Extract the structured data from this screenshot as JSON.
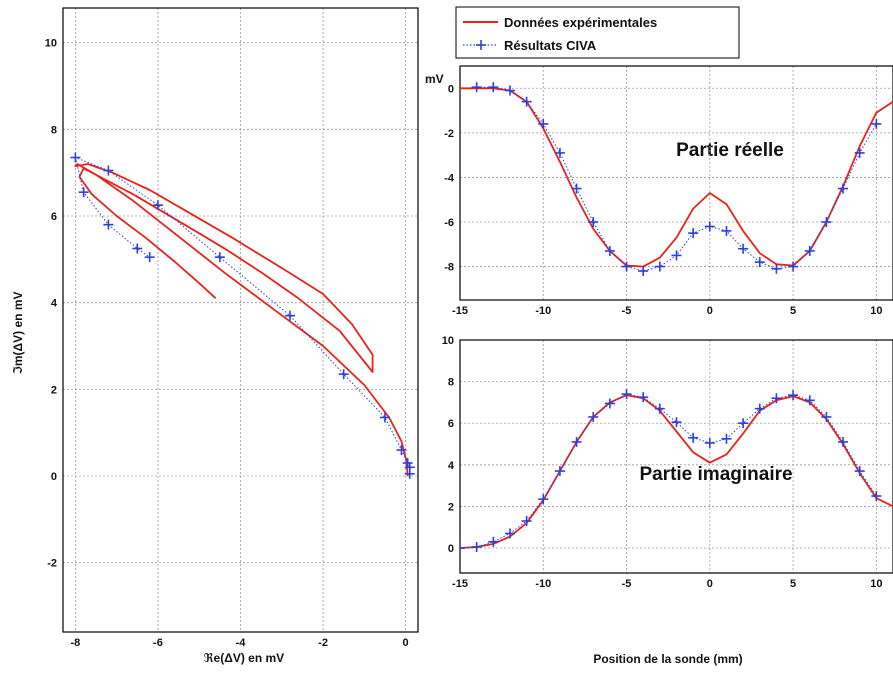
{
  "colors": {
    "experimental": "#e8231b",
    "civa": "#2b3fe0"
  },
  "legend": {
    "experimental_label": "Données expérimentales",
    "civa_label": "Résultats CIVA"
  },
  "x_shared_label": "Position de la sonde (mm)",
  "chart_data": [
    {
      "id": "lissajous",
      "type": "line",
      "xlabel": "ℜe(ΔV) en mV",
      "ylabel": "ℑm(ΔV) en mV",
      "xlim": [
        -8.3,
        0.3
      ],
      "ylim": [
        -3.6,
        10.8
      ],
      "xticks": [
        -8,
        -6,
        -4,
        -2,
        0
      ],
      "yticks": [
        -2,
        0,
        2,
        4,
        6,
        8,
        10
      ],
      "grid": true,
      "series": [
        {
          "name": "Données expérimentales",
          "style": "line",
          "x": [
            0.05,
            0.02,
            -0.1,
            -0.4,
            -1.0,
            -2.0,
            -3.2,
            -4.4,
            -5.6,
            -6.6,
            -7.5,
            -7.95,
            -8.0,
            -7.7,
            -7.1,
            -6.2,
            -5.2,
            -4.2,
            -3.0,
            -2.0,
            -1.3,
            -0.8,
            -0.8,
            -1.6,
            -2.6,
            -3.5,
            -4.3,
            -5.0,
            -5.8,
            -6.6,
            -7.3,
            -7.8,
            -7.9,
            -7.6,
            -7.0,
            -6.3,
            -5.6,
            -5.0,
            -4.6
          ],
          "y": [
            0.0,
            0.35,
            0.8,
            1.35,
            2.1,
            3.0,
            3.85,
            4.7,
            5.6,
            6.35,
            6.95,
            7.2,
            7.15,
            7.2,
            7.0,
            6.6,
            6.05,
            5.5,
            4.8,
            4.2,
            3.5,
            2.8,
            2.4,
            3.35,
            4.1,
            4.7,
            5.2,
            5.6,
            6.05,
            6.5,
            6.85,
            7.1,
            6.9,
            6.5,
            6.0,
            5.5,
            4.95,
            4.45,
            4.1
          ]
        },
        {
          "name": "Résultats CIVA",
          "style": "dotted-plus",
          "x": [
            0.1,
            0.1,
            0.05,
            -0.1,
            -0.5,
            -1.5,
            -2.8,
            -4.5,
            -6.0,
            -7.2,
            -8.0,
            -7.8,
            -7.2,
            -6.5,
            -6.2
          ],
          "y": [
            0.05,
            0.2,
            0.3,
            0.6,
            1.35,
            2.35,
            3.7,
            5.05,
            6.25,
            7.05,
            7.35,
            6.55,
            5.8,
            5.25,
            5.05
          ]
        }
      ]
    },
    {
      "id": "real-part",
      "type": "line",
      "title": "Partie réelle",
      "ylabel": "mV",
      "xlim": [
        -15,
        11
      ],
      "ylim": [
        -9.5,
        1.0
      ],
      "xticks": [
        -15,
        -10,
        -5,
        0,
        5,
        10
      ],
      "yticks": [
        -8,
        -6,
        -4,
        -2,
        0
      ],
      "grid": true,
      "series": [
        {
          "name": "Données expérimentales",
          "style": "line",
          "x": [
            -15,
            -14,
            -13,
            -12,
            -11,
            -10,
            -9,
            -8,
            -7,
            -6,
            -5,
            -4,
            -3,
            -2,
            -1,
            0,
            1,
            2,
            3,
            4,
            5,
            6,
            7,
            8,
            9,
            10,
            11
          ],
          "y": [
            0,
            0,
            0,
            -0.1,
            -0.6,
            -1.8,
            -3.3,
            -4.9,
            -6.3,
            -7.3,
            -7.95,
            -8.0,
            -7.6,
            -6.7,
            -5.4,
            -4.7,
            -5.2,
            -6.4,
            -7.4,
            -7.9,
            -7.95,
            -7.3,
            -6.0,
            -4.4,
            -2.6,
            -1.1,
            -0.6
          ]
        },
        {
          "name": "Résultats CIVA",
          "style": "dotted-plus",
          "x": [
            -14,
            -13,
            -12,
            -11,
            -10,
            -9,
            -8,
            -7,
            -6,
            -5,
            -4,
            -3,
            -2,
            -1,
            0,
            1,
            2,
            3,
            4,
            5,
            6,
            7,
            8,
            9,
            10
          ],
          "y": [
            0.05,
            0.05,
            -0.1,
            -0.6,
            -1.6,
            -2.9,
            -4.5,
            -6.0,
            -7.3,
            -8.0,
            -8.2,
            -8.0,
            -7.5,
            -6.5,
            -6.2,
            -6.4,
            -7.2,
            -7.8,
            -8.1,
            -8.0,
            -7.3,
            -6.0,
            -4.5,
            -2.9,
            -1.6
          ]
        }
      ]
    },
    {
      "id": "imag-part",
      "type": "line",
      "title": "Partie imaginaire",
      "xlim": [
        -15,
        11
      ],
      "ylim": [
        -1.2,
        10.0
      ],
      "xticks": [
        -15,
        -10,
        -5,
        0,
        5,
        10
      ],
      "yticks": [
        0,
        2,
        4,
        6,
        8,
        10
      ],
      "grid": true,
      "series": [
        {
          "name": "Données expérimentales",
          "style": "line",
          "x": [
            -15,
            -14,
            -13,
            -12,
            -11,
            -10,
            -9,
            -8,
            -7,
            -6,
            -5,
            -4,
            -3,
            -2,
            -1,
            0,
            1,
            2,
            3,
            4,
            5,
            6,
            7,
            8,
            9,
            10,
            11
          ],
          "y": [
            0,
            0.05,
            0.2,
            0.55,
            1.2,
            2.3,
            3.7,
            5.1,
            6.3,
            7.0,
            7.35,
            7.2,
            6.6,
            5.6,
            4.6,
            4.1,
            4.5,
            5.5,
            6.6,
            7.1,
            7.3,
            7.0,
            6.2,
            5.0,
            3.6,
            2.4,
            2.0
          ]
        },
        {
          "name": "Résultats CIVA",
          "style": "dotted-plus",
          "x": [
            -15,
            -14,
            -13,
            -12,
            -11,
            -10,
            -9,
            -8,
            -7,
            -6,
            -5,
            -4,
            -3,
            -2,
            -1,
            0,
            1,
            2,
            3,
            4,
            5,
            6,
            7,
            8,
            9,
            10
          ],
          "y": [
            0,
            0.05,
            0.3,
            0.7,
            1.3,
            2.35,
            3.7,
            5.1,
            6.3,
            6.95,
            7.4,
            7.25,
            6.7,
            6.05,
            5.3,
            5.05,
            5.25,
            6.0,
            6.7,
            7.2,
            7.35,
            7.1,
            6.3,
            5.1,
            3.7,
            2.5
          ]
        }
      ]
    }
  ]
}
